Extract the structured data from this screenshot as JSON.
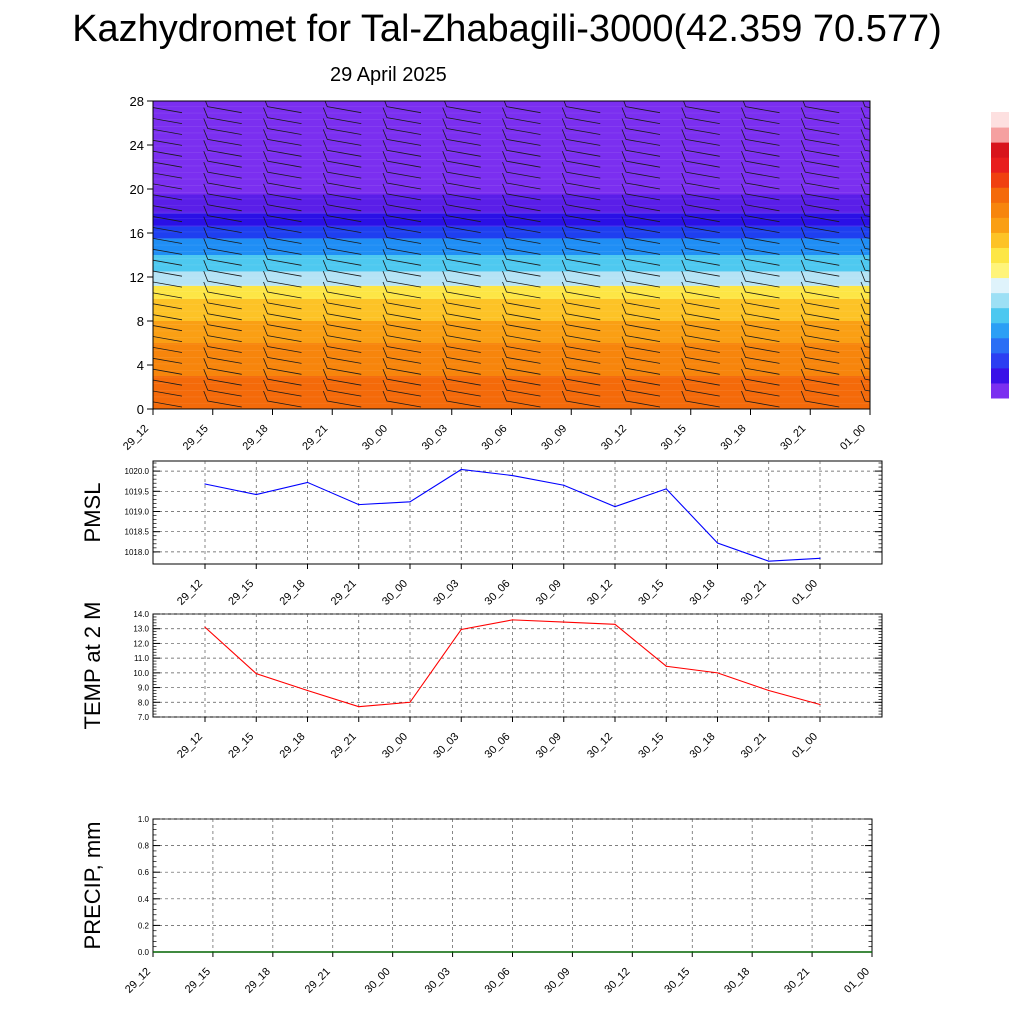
{
  "header": {
    "title": "Kazhydromet for Tal-Zhabagili-3000(42.359 70.577)",
    "date": "29 April 2025"
  },
  "time_labels": [
    "29_12",
    "29_15",
    "29_18",
    "29_21",
    "30_00",
    "30_03",
    "30_06",
    "30_09",
    "30_12",
    "30_15",
    "30_18",
    "30_21",
    "01_00"
  ],
  "chart_data": [
    {
      "id": "profile",
      "type": "heatmap",
      "title": "",
      "xlabel": "",
      "ylabel": "",
      "x": [
        "29_12",
        "29_15",
        "29_18",
        "29_21",
        "30_00",
        "30_03",
        "30_06",
        "30_09",
        "30_12",
        "30_15",
        "30_18",
        "30_21",
        "01_00"
      ],
      "ylim": [
        0,
        28
      ],
      "yticks": [
        0,
        4,
        8,
        12,
        16,
        20,
        24,
        28
      ],
      "layers": [
        {
          "from": 0,
          "to": 3,
          "color": "#f46a0a"
        },
        {
          "from": 3,
          "to": 6,
          "color": "#f7850c"
        },
        {
          "from": 6,
          "to": 8,
          "color": "#fa9f14"
        },
        {
          "from": 8,
          "to": 10,
          "color": "#fdc326"
        },
        {
          "from": 10,
          "to": 11.2,
          "color": "#fde645"
        },
        {
          "from": 11.2,
          "to": 12.5,
          "color": "#b5e3f5"
        },
        {
          "from": 12.5,
          "to": 14,
          "color": "#4ec9f0"
        },
        {
          "from": 14,
          "to": 15.5,
          "color": "#1f8ef5"
        },
        {
          "from": 15.5,
          "to": 16.6,
          "color": "#1e3ff0"
        },
        {
          "from": 16.6,
          "to": 17.8,
          "color": "#2a10e6"
        },
        {
          "from": 17.8,
          "to": 19.5,
          "color": "#5a1ee8"
        },
        {
          "from": 19.5,
          "to": 28,
          "color": "#7b2ff0"
        }
      ],
      "colorbar_colors": [
        "#7b2ff0",
        "#3a10e8",
        "#2c3ef2",
        "#2a6ef5",
        "#2c9ff5",
        "#4cc8f0",
        "#9de0f5",
        "#dff3fb",
        "#fff47a",
        "#fde645",
        "#fdc326",
        "#fa9f14",
        "#f7850c",
        "#f46a0a",
        "#f04010",
        "#e81e1e",
        "#d8141c",
        "#f5a0a0",
        "#fde0e0"
      ]
    },
    {
      "id": "pmsl",
      "type": "line",
      "ylabel": "PMSL",
      "xlabel": "",
      "ylim": [
        1017.7,
        1020.25
      ],
      "yticks": [
        1018.0,
        1018.5,
        1019.0,
        1019.5,
        1020.0
      ],
      "ytick_labels": [
        "1018.0",
        "1018.5",
        "1019.0",
        "1019.5",
        "1020.0"
      ],
      "x": [
        "29_12",
        "29_15",
        "29_18",
        "29_21",
        "30_00",
        "30_03",
        "30_06",
        "30_09",
        "30_12",
        "30_15",
        "30_18",
        "30_21",
        "01_00"
      ],
      "series": [
        {
          "color": "#0000ff",
          "values": [
            1019.68,
            1019.42,
            1019.72,
            1019.17,
            1019.24,
            1020.04,
            1019.89,
            1019.65,
            1019.12,
            1019.56,
            1018.22,
            1017.77,
            1017.84
          ]
        }
      ]
    },
    {
      "id": "temp",
      "type": "line",
      "ylabel": "TEMP at 2 M",
      "xlabel": "",
      "ylim": [
        7.0,
        14.0
      ],
      "yticks": [
        7.0,
        8.0,
        9.0,
        10.0,
        11.0,
        12.0,
        13.0,
        14.0
      ],
      "ytick_labels": [
        "7.0",
        "8.0",
        "9.0",
        "10.0",
        "11.0",
        "12.0",
        "13.0",
        "14.0"
      ],
      "x": [
        "29_12",
        "29_15",
        "29_18",
        "29_21",
        "30_00",
        "30_03",
        "30_06",
        "30_09",
        "30_12",
        "30_15",
        "30_18",
        "30_21",
        "01_00"
      ],
      "series": [
        {
          "color": "#ff0000",
          "values": [
            13.1,
            9.95,
            8.8,
            7.7,
            8.0,
            12.95,
            13.6,
            13.45,
            13.3,
            10.45,
            10.0,
            8.8,
            7.85
          ]
        }
      ]
    },
    {
      "id": "precip",
      "type": "line",
      "ylabel": "PRECIP, mm",
      "xlabel": "",
      "ylim": [
        0.0,
        1.0
      ],
      "yticks": [
        0.0,
        0.2,
        0.4,
        0.6,
        0.8,
        1.0
      ],
      "ytick_labels": [
        "0.0",
        "0.2",
        "0.4",
        "0.6",
        "0.8",
        "1.0"
      ],
      "x": [
        "29_12",
        "29_15",
        "29_18",
        "29_21",
        "30_00",
        "30_03",
        "30_06",
        "30_09",
        "30_12",
        "30_15",
        "30_18",
        "30_21",
        "01_00"
      ],
      "series": [
        {
          "color": "#006400",
          "values": [
            0,
            0,
            0,
            0,
            0,
            0,
            0,
            0,
            0,
            0,
            0,
            0,
            0
          ]
        }
      ]
    }
  ]
}
